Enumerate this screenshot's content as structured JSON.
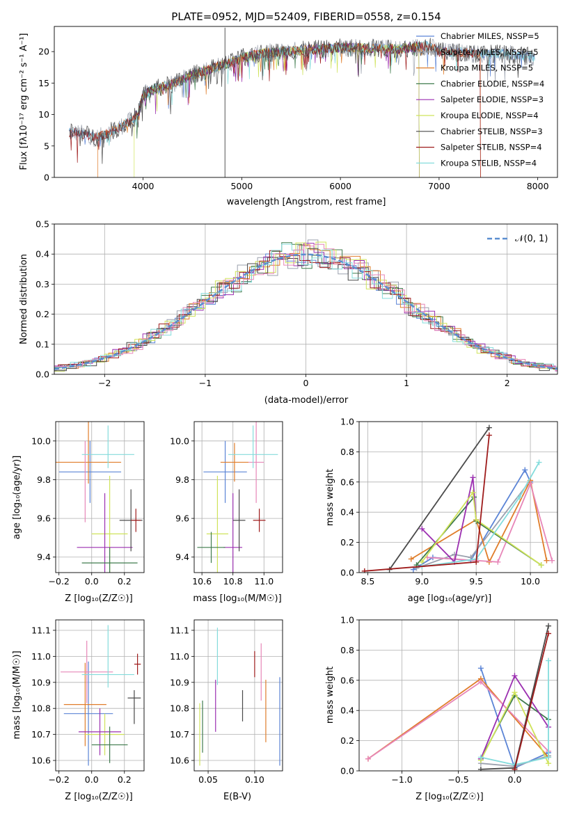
{
  "colors": {
    "ch_miles": "#5b84d6",
    "sa_miles": "#9ba1ae",
    "kr_miles": "#e07d2a",
    "ch_elodie": "#3f7b4d",
    "sa_elodie": "#9b2fb0",
    "kr_elodie": "#cfe35a",
    "ch_stelib": "#4a4a4a",
    "sa_stelib": "#9e1b1b",
    "kr_stelib": "#84dcdc",
    "extra_pink": "#e786b8",
    "normal_dash": "#5a8ed0"
  },
  "chart_data": [
    {
      "id": "spectrum",
      "type": "line",
      "title": "PLATE=0952, MJD=52409, FIBERID=0558, z=0.154",
      "xlabel": "wavelength [Angstrom, rest frame]",
      "ylabel": "Flux [fλ10⁻¹⁷ erg cm⁻² s⁻¹ A⁻¹]",
      "xlim": [
        3100,
        8200
      ],
      "ylim": [
        0,
        24
      ],
      "xticks": [
        "4000",
        "5000",
        "6000",
        "7000",
        "8000"
      ],
      "yticks": [
        "0",
        "5",
        "10",
        "15",
        "20"
      ],
      "grid": false,
      "legend_position": "top-right",
      "legend": [
        "Chabrier MILES, NSSP=5",
        "Salpeter MILES, NSSP=5",
        "Kroupa MILES, NSSP=5",
        "Chabrier ELODIE, NSSP=4",
        "Salpeter ELODIE, NSSP=3",
        "Kroupa ELODIE, NSSP=4",
        "Chabrier STELIB, NSSP=3",
        "Salpeter STELIB, NSSP=4",
        "Kroupa STELIB, NSSP=4"
      ],
      "continuum": {
        "x": [
          3250,
          3400,
          3550,
          3700,
          3850,
          3950,
          4000,
          4100,
          4300,
          4500,
          4700,
          4900,
          5000,
          5200,
          5400,
          5600,
          5800,
          6000,
          6200,
          6400,
          6600,
          6800,
          6900,
          7000,
          7200,
          7400,
          7600,
          7800,
          8000
        ],
        "y": [
          7.2,
          6.9,
          6.3,
          7.5,
          8.8,
          10.0,
          13.0,
          14.0,
          14.8,
          16.3,
          17.3,
          18.3,
          19.0,
          19.7,
          20.0,
          20.2,
          20.4,
          20.6,
          20.6,
          20.5,
          20.4,
          20.8,
          20.9,
          20.0,
          19.9,
          19.6,
          19.7,
          19.4,
          19.1
        ]
      },
      "lower_cut": {
        "Kroupa MILES": [
          3540,
          7420
        ],
        "Kroupa ELODIE": [
          3910,
          6800
        ],
        "Salpeter STELIB": [
          7420
        ]
      },
      "spike": {
        "x": 4830,
        "y": 23.8
      }
    },
    {
      "id": "residuals",
      "type": "line",
      "xlabel": "(data-model)/error",
      "ylabel": "Normed distribution",
      "xlim": [
        -2.5,
        2.5
      ],
      "ylim": [
        0,
        0.5
      ],
      "xticks": [
        "−2",
        "−1",
        "0",
        "1",
        "2"
      ],
      "yticks": [
        "0.0",
        "0.1",
        "0.2",
        "0.3",
        "0.4",
        "0.5"
      ],
      "grid": true,
      "legend_position": "top-right",
      "legend": [
        "𝒩(0, 1)"
      ]
    },
    {
      "id": "age-vs-Z",
      "type": "scatter",
      "xlabel": "Z [log₁₀(Z/Z☉)]",
      "ylabel": "age  [log₁₀(age/yr)]",
      "xlim": [
        -0.22,
        0.32
      ],
      "ylim": [
        9.32,
        10.1
      ],
      "xticks": [
        "−0.2",
        "0.0",
        "0.2"
      ],
      "yticks": [
        "9.4",
        "9.6",
        "9.8",
        "10.0"
      ],
      "grid": true,
      "points": [
        {
          "x": -0.01,
          "y": 9.84,
          "xerr": [
            0.19,
            0.19
          ],
          "yerr": [
            0.16,
            0.16
          ],
          "color": "ch_miles"
        },
        {
          "x": -0.02,
          "y": 9.89,
          "xerr": [
            0.2,
            0.2
          ],
          "yerr": [
            0.11,
            0.3
          ],
          "color": "kr_miles"
        },
        {
          "x": -0.04,
          "y": 9.79,
          "xerr": [
            0.0,
            0.0
          ],
          "yerr": [
            0.21,
            0.21
          ],
          "color": "extra_pink"
        },
        {
          "x": 0.1,
          "y": 9.93,
          "xerr": [
            0.16,
            0.16
          ],
          "yerr": [
            0.07,
            0.15
          ],
          "color": "kr_stelib"
        },
        {
          "x": 0.11,
          "y": 9.52,
          "xerr": [
            0.11,
            0.11
          ],
          "yerr": [
            0.3,
            0.3
          ],
          "color": "kr_elodie"
        },
        {
          "x": 0.08,
          "y": 9.45,
          "xerr": [
            0.17,
            0.17
          ],
          "yerr": [
            0.28,
            0.28
          ],
          "color": "sa_elodie"
        },
        {
          "x": 0.11,
          "y": 9.37,
          "xerr": [
            0.17,
            0.17
          ],
          "yerr": [
            0.08,
            0.08
          ],
          "color": "ch_elodie"
        },
        {
          "x": 0.24,
          "y": 9.59,
          "xerr": [
            0.07,
            0.07
          ],
          "yerr": [
            0.16,
            0.16
          ],
          "color": "ch_stelib"
        },
        {
          "x": 0.27,
          "y": 9.59,
          "xerr": [
            0.03,
            0.03
          ],
          "yerr": [
            0.06,
            0.06
          ],
          "color": "sa_stelib"
        }
      ]
    },
    {
      "id": "age-vs-mass",
      "type": "scatter",
      "xlabel": "mass [log₁₀(M/M☉)]",
      "ylabel": "",
      "xlim": [
        10.55,
        11.12
      ],
      "ylim": [
        9.32,
        10.1
      ],
      "xticks": [
        "10.6",
        "10.8",
        "11.0"
      ],
      "yticks": [
        "9.4",
        "9.6",
        "9.8",
        "10.0"
      ],
      "grid": true,
      "points": [
        {
          "x": 10.75,
          "y": 9.84,
          "xerr": [
            0.14,
            0.14
          ],
          "yerr": [
            0.16,
            0.16
          ],
          "color": "ch_miles"
        },
        {
          "x": 10.81,
          "y": 9.89,
          "xerr": [
            0.09,
            0.09
          ],
          "yerr": [
            0.1,
            0.1
          ],
          "color": "kr_miles"
        },
        {
          "x": 10.95,
          "y": 9.89,
          "xerr": [
            0.05,
            0.05
          ],
          "yerr": [
            0.21,
            0.21
          ],
          "color": "extra_pink"
        },
        {
          "x": 10.93,
          "y": 9.93,
          "xerr": [
            0.16,
            0.16
          ],
          "yerr": [
            0.07,
            0.15
          ],
          "color": "kr_stelib"
        },
        {
          "x": 10.7,
          "y": 9.52,
          "xerr": [
            0.07,
            0.07
          ],
          "yerr": [
            0.3,
            0.3
          ],
          "color": "kr_elodie"
        },
        {
          "x": 10.8,
          "y": 9.45,
          "xerr": [
            0.06,
            0.06
          ],
          "yerr": [
            0.28,
            0.28
          ],
          "color": "sa_elodie"
        },
        {
          "x": 10.66,
          "y": 9.45,
          "xerr": [
            0.09,
            0.09
          ],
          "yerr": [
            0.08,
            0.08
          ],
          "color": "ch_elodie"
        },
        {
          "x": 10.84,
          "y": 9.59,
          "xerr": [
            0.04,
            0.04
          ],
          "yerr": [
            0.16,
            0.16
          ],
          "color": "ch_stelib"
        },
        {
          "x": 10.97,
          "y": 9.59,
          "xerr": [
            0.04,
            0.04
          ],
          "yerr": [
            0.06,
            0.06
          ],
          "color": "sa_stelib"
        }
      ]
    },
    {
      "id": "mass-weight-vs-age",
      "type": "line",
      "xlabel": "age  [log₁₀(age/yr)]",
      "ylabel": "mass weight",
      "xlim": [
        8.42,
        10.25
      ],
      "ylim": [
        0,
        1.0
      ],
      "xticks": [
        "8.5",
        "9.0",
        "9.5",
        "10.0"
      ],
      "yticks": [
        "0.0",
        "0.2",
        "0.4",
        "0.6",
        "0.8",
        "1.0"
      ],
      "grid": true,
      "series": [
        {
          "color": "ch_miles",
          "x": [
            8.92,
            9.1,
            9.45,
            9.95,
            10.0
          ],
          "y": [
            0.02,
            0.1,
            0.08,
            0.68,
            0.6
          ]
        },
        {
          "color": "sa_miles",
          "x": [
            8.95,
            9.3,
            9.45,
            10.0
          ],
          "y": [
            0.03,
            0.12,
            0.1,
            0.61
          ]
        },
        {
          "color": "kr_miles",
          "x": [
            8.9,
            9.5,
            9.62,
            10.0,
            10.15
          ],
          "y": [
            0.09,
            0.35,
            0.07,
            0.61,
            0.08
          ]
        },
        {
          "color": "extra_pink",
          "x": [
            9.05,
            9.3,
            9.7,
            10.0,
            10.2
          ],
          "y": [
            0.1,
            0.09,
            0.07,
            0.59,
            0.08
          ]
        },
        {
          "color": "ch_elodie",
          "x": [
            8.95,
            9.48,
            9.5,
            10.1
          ],
          "y": [
            0.05,
            0.5,
            0.34,
            0.05
          ]
        },
        {
          "color": "sa_elodie",
          "x": [
            9.0,
            9.3,
            9.47,
            9.5
          ],
          "y": [
            0.29,
            0.07,
            0.63,
            0.35
          ]
        },
        {
          "color": "kr_elodie",
          "x": [
            9.0,
            9.47,
            9.5,
            10.1
          ],
          "y": [
            0.07,
            0.53,
            0.35,
            0.05
          ]
        },
        {
          "color": "kr_stelib",
          "x": [
            9.0,
            9.5,
            9.9,
            10.08
          ],
          "y": [
            0.04,
            0.09,
            0.5,
            0.73
          ]
        },
        {
          "color": "ch_stelib",
          "x": [
            8.7,
            9.62
          ],
          "y": [
            0.02,
            0.96
          ]
        },
        {
          "color": "sa_stelib",
          "x": [
            8.47,
            9.5,
            9.62
          ],
          "y": [
            0.01,
            0.07,
            0.91
          ]
        }
      ]
    },
    {
      "id": "mass-vs-Z",
      "type": "scatter",
      "xlabel": "Z [log₁₀(Z/Z☉)]",
      "ylabel": "mass [log₁₀(M/M☉)]",
      "xlim": [
        -0.22,
        0.32
      ],
      "ylim": [
        10.56,
        11.14
      ],
      "xticks": [
        "−0.2",
        "0.0",
        "0.2"
      ],
      "yticks": [
        "10.6",
        "10.7",
        "10.8",
        "10.9",
        "11.0",
        "11.1"
      ],
      "grid": true,
      "points": [
        {
          "x": -0.02,
          "y": 10.78,
          "xerr": [
            0.15,
            0.15
          ],
          "yerr": [
            0.2,
            0.2
          ],
          "color": "ch_miles"
        },
        {
          "x": -0.04,
          "y": 10.815,
          "xerr": [
            0.13,
            0.13
          ],
          "yerr": [
            0.16,
            0.16
          ],
          "color": "kr_miles"
        },
        {
          "x": -0.03,
          "y": 10.94,
          "xerr": [
            0.16,
            0.16
          ],
          "yerr": [
            0.12,
            0.12
          ],
          "color": "extra_pink"
        },
        {
          "x": 0.1,
          "y": 10.93,
          "xerr": [
            0.16,
            0.16
          ],
          "yerr": [
            0.05,
            0.19
          ],
          "color": "kr_stelib"
        },
        {
          "x": 0.08,
          "y": 10.7,
          "xerr": [
            0.12,
            0.12
          ],
          "yerr": [
            0.08,
            0.08
          ],
          "color": "kr_elodie"
        },
        {
          "x": 0.05,
          "y": 10.71,
          "xerr": [
            0.13,
            0.13
          ],
          "yerr": [
            0.09,
            0.09
          ],
          "color": "sa_elodie"
        },
        {
          "x": 0.11,
          "y": 10.66,
          "xerr": [
            0.11,
            0.11
          ],
          "yerr": [
            0.07,
            0.07
          ],
          "color": "ch_elodie"
        },
        {
          "x": 0.26,
          "y": 10.84,
          "xerr": [
            0.04,
            0.04
          ],
          "yerr": [
            0.1,
            0.03
          ],
          "color": "ch_stelib"
        },
        {
          "x": 0.28,
          "y": 10.97,
          "xerr": [
            0.02,
            0.02
          ],
          "yerr": [
            0.04,
            0.04
          ],
          "color": "sa_stelib"
        }
      ]
    },
    {
      "id": "mass-vs-EBV",
      "type": "scatter",
      "xlabel": "E(B-V)",
      "ylabel": "",
      "xlim": [
        0.035,
        0.13
      ],
      "ylim": [
        10.56,
        11.14
      ],
      "xticks": [
        "0.05",
        "0.10"
      ],
      "yticks": [
        "10.6",
        "10.7",
        "10.8",
        "10.9",
        "11.0",
        "11.1"
      ],
      "grid": true,
      "points": [
        {
          "x": 0.041,
          "y": 10.7,
          "xerr": [
            0,
            0
          ],
          "yerr": [
            0.12,
            0.12
          ],
          "color": "kr_elodie"
        },
        {
          "x": 0.044,
          "y": 10.73,
          "xerr": [
            0,
            0
          ],
          "yerr": [
            0.1,
            0.1
          ],
          "color": "ch_elodie"
        },
        {
          "x": 0.058,
          "y": 10.81,
          "xerr": [
            0,
            0
          ],
          "yerr": [
            0.1,
            0.1
          ],
          "color": "sa_elodie"
        },
        {
          "x": 0.06,
          "y": 11.0,
          "xerr": [
            0,
            0
          ],
          "yerr": [
            0.11,
            0.11
          ],
          "color": "kr_stelib"
        },
        {
          "x": 0.087,
          "y": 10.81,
          "xerr": [
            0,
            0
          ],
          "yerr": [
            0.06,
            0.06
          ],
          "color": "ch_stelib"
        },
        {
          "x": 0.1,
          "y": 10.97,
          "xerr": [
            0,
            0
          ],
          "yerr": [
            0.05,
            0.05
          ],
          "color": "sa_stelib"
        },
        {
          "x": 0.107,
          "y": 10.94,
          "xerr": [
            0,
            0
          ],
          "yerr": [
            0.11,
            0.11
          ],
          "color": "extra_pink"
        },
        {
          "x": 0.112,
          "y": 10.79,
          "xerr": [
            0,
            0
          ],
          "yerr": [
            0.12,
            0.12
          ],
          "color": "kr_miles"
        },
        {
          "x": 0.127,
          "y": 10.75,
          "xerr": [
            0,
            0
          ],
          "yerr": [
            0.17,
            0.17
          ],
          "color": "ch_miles"
        }
      ]
    },
    {
      "id": "mass-weight-vs-Z",
      "type": "line",
      "xlabel": "Z [log₁₀(Z/Z☉)]",
      "ylabel": "mass weight",
      "xlim": [
        -1.38,
        0.38
      ],
      "ylim": [
        0,
        1.0
      ],
      "xticks": [
        "−1.0",
        "−0.5",
        "0.0"
      ],
      "yticks": [
        "0.0",
        "0.2",
        "0.4",
        "0.6",
        "0.8",
        "1.0"
      ],
      "grid": true,
      "series": [
        {
          "color": "ch_miles",
          "x": [
            -0.3,
            0.0,
            0.3
          ],
          "y": [
            0.68,
            0.02,
            0.12
          ]
        },
        {
          "color": "sa_miles",
          "x": [
            -0.3,
            0.0,
            0.3
          ],
          "y": [
            0.05,
            0.03,
            0.1
          ]
        },
        {
          "color": "kr_miles",
          "x": [
            -1.3,
            -0.3,
            0.3
          ],
          "y": [
            0.08,
            0.61,
            0.09
          ]
        },
        {
          "color": "extra_pink",
          "x": [
            -1.3,
            -0.3,
            0.3
          ],
          "y": [
            0.08,
            0.59,
            0.13
          ]
        },
        {
          "color": "ch_elodie",
          "x": [
            -0.3,
            0.0,
            0.3
          ],
          "y": [
            0.08,
            0.5,
            0.34
          ]
        },
        {
          "color": "sa_elodie",
          "x": [
            -0.3,
            0.0,
            0.3
          ],
          "y": [
            0.08,
            0.63,
            0.29
          ]
        },
        {
          "color": "kr_elodie",
          "x": [
            -0.3,
            0.0,
            0.3
          ],
          "y": [
            0.07,
            0.52,
            0.05
          ]
        },
        {
          "color": "kr_stelib",
          "x": [
            -0.3,
            0.0,
            0.3,
            0.3
          ],
          "y": [
            0.09,
            0.04,
            0.09,
            0.73
          ]
        },
        {
          "color": "ch_stelib",
          "x": [
            -0.3,
            0.0,
            0.3
          ],
          "y": [
            0.01,
            0.02,
            0.96
          ]
        },
        {
          "color": "sa_stelib",
          "x": [
            0.0,
            0.3
          ],
          "y": [
            0.01,
            0.91
          ]
        }
      ]
    }
  ]
}
